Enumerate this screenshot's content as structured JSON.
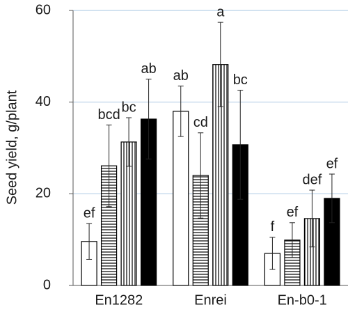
{
  "chart_data": {
    "type": "bar",
    "ylabel": "Seed yield, g/plant",
    "categories": [
      "En1282",
      "Enrei",
      "En-b0-1"
    ],
    "series": [
      {
        "pattern": "none",
        "color": "#000000",
        "values": [
          9.6,
          38,
          7
        ],
        "errors": [
          3.9,
          5.5,
          3.5
        ],
        "letters": [
          "ef",
          "ab",
          "f"
        ]
      },
      {
        "pattern": "horizontal",
        "color": "#000000",
        "values": [
          26.1,
          24,
          9.9
        ],
        "errors": [
          8.9,
          9.3,
          3.8
        ],
        "letters": [
          "bcd",
          "cd",
          "ef"
        ]
      },
      {
        "pattern": "vertical",
        "color": "#000000",
        "values": [
          31.3,
          48.2,
          14.6
        ],
        "errors": [
          5.3,
          9.2,
          6.2
        ],
        "letters": [
          "bc",
          "a",
          "def"
        ]
      },
      {
        "pattern": "solid",
        "color": "#000000",
        "values": [
          36.3,
          30.7,
          19
        ],
        "errors": [
          8.7,
          11.9,
          5.3
        ],
        "letters": [
          "ab",
          "bc",
          "ef"
        ]
      }
    ],
    "ylim": [
      0,
      60
    ],
    "yticks": [
      0,
      20,
      40,
      60
    ],
    "grid": true,
    "grid_color": "#b8d0e8"
  }
}
